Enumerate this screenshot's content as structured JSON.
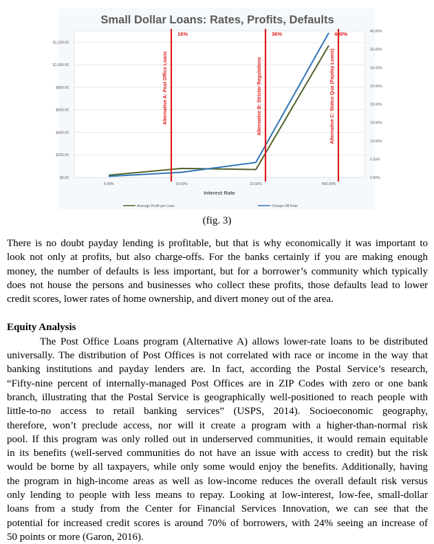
{
  "chart_data": {
    "type": "line",
    "title": "Small Dollar Loans: Rates, Profits, Defaults",
    "xlabel": "Interest Rate",
    "categories": [
      "6.00%",
      "19.00%",
      "23.00%",
      "400.00%"
    ],
    "y_left_ticks": [
      "$0.00",
      "$200.00",
      "$400.00",
      "$600.00",
      "$800.00",
      "$1,000.00",
      "$1,200.00"
    ],
    "y_left_range": [
      0,
      1300
    ],
    "y_right_ticks": [
      "0.00%",
      "5.00%",
      "10.00%",
      "15.00%",
      "20.00%",
      "25.00%",
      "30.00%",
      "35.00%",
      "40.00%"
    ],
    "y_right_range": [
      0,
      40
    ],
    "series": [
      {
        "name": "Average Profit per Loan",
        "axis": "left",
        "color": "#4f6228",
        "values": [
          20,
          80,
          70,
          1170
        ]
      },
      {
        "name": "Charge-Off Rate",
        "axis": "right",
        "color": "#2e75b6",
        "values": [
          0.3,
          1.4,
          4.1,
          39.5
        ]
      }
    ],
    "annotations": [
      {
        "label": "Alternative A: Post Office Loans",
        "rate": "16%"
      },
      {
        "label": "Alternative B: Stricter Regulations",
        "rate": "36%"
      },
      {
        "label": "Alternative C: Status Quo (Payday Loans)",
        "rate": "400%"
      }
    ],
    "annotation_color": "#e01b1b",
    "grid": true,
    "legend_position": "bottom"
  },
  "caption": "(fig. 3)",
  "paragraph1": [
    "There is no doubt payday lending is profitable, but that is why economically it was important to",
    "look not only at profits, but also charge-offs. For the banks certainly if you are making enough",
    "money, the number of defaults is less important, but for a borrower’s community which typically",
    "does not house the persons and businesses who collect these profits, those defaults lead to lower",
    "credit scores, lower rates of home ownership, and divert money out of the area."
  ],
  "heading": "Equity Analysis",
  "paragraph2": [
    "The Post Office Loans program (Alternative A) allows lower-rate loans to be distributed",
    "universally. The distribution of Post Offices is not correlated with race or income in the way that",
    "banking institutions and payday lenders are. In fact, according the Postal Service’s research,",
    "“Fifty-nine percent of internally-managed Post Offices are in ZIP Codes with zero or one bank",
    "branch, illustrating that the Postal Service is geographically well-positioned to reach people with",
    "little-to-no access to retail banking services” (USPS, 2014). Socioeconomic geography,",
    "therefore, won’t preclude access, nor will it create a program with a higher-than-normal risk",
    "pool. If this program was only rolled out in underserved communities, it would remain equitable",
    "in its benefits (well-served communities do not have an issue with access to credit) but the risk",
    "would be borne by all taxpayers, while only some would enjoy the benefits. Additionally, having",
    "the program in high-income areas as well as low-income reduces the overall default risk versus",
    "only lending to people with less means to repay.  Looking at low-interest, low-fee, small-dollar",
    "loans from a study from the Center for Financial Services Innovation, we can see that the",
    "potential for increased credit scores is around 70% of borrowers, with 24% seeing an increase of",
    "50 points or more (Garon, 2016)."
  ]
}
